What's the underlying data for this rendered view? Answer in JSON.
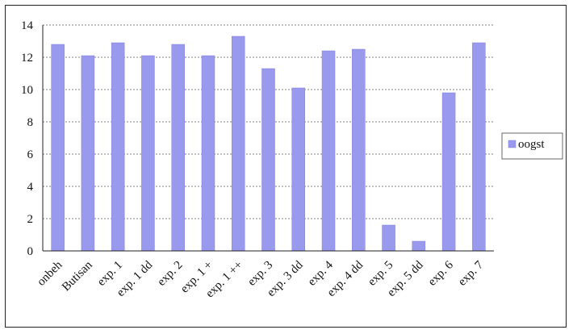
{
  "chart_data": {
    "type": "bar",
    "title": "",
    "xlabel": "",
    "ylabel": "",
    "ylim": [
      0,
      14
    ],
    "yticks": [
      0,
      2,
      4,
      6,
      8,
      10,
      12,
      14
    ],
    "grid": true,
    "legend_position": "right",
    "categories": [
      "onbeh",
      "Butisan",
      "exp. 1",
      "exp. 1 dd",
      "exp. 2",
      "exp. 1 +",
      "exp. 1 ++",
      "exp. 3",
      "exp. 3 dd",
      "exp. 4",
      "exp. 4 dd",
      "exp. 5",
      "exp. 5 dd",
      "exp. 6",
      "exp. 7"
    ],
    "series": [
      {
        "name": "oogst",
        "color": "#9999ee",
        "values": [
          12.8,
          12.1,
          12.9,
          12.1,
          12.8,
          12.1,
          13.3,
          11.3,
          10.1,
          12.4,
          12.5,
          1.6,
          0.6,
          9.8,
          12.9
        ]
      }
    ]
  }
}
